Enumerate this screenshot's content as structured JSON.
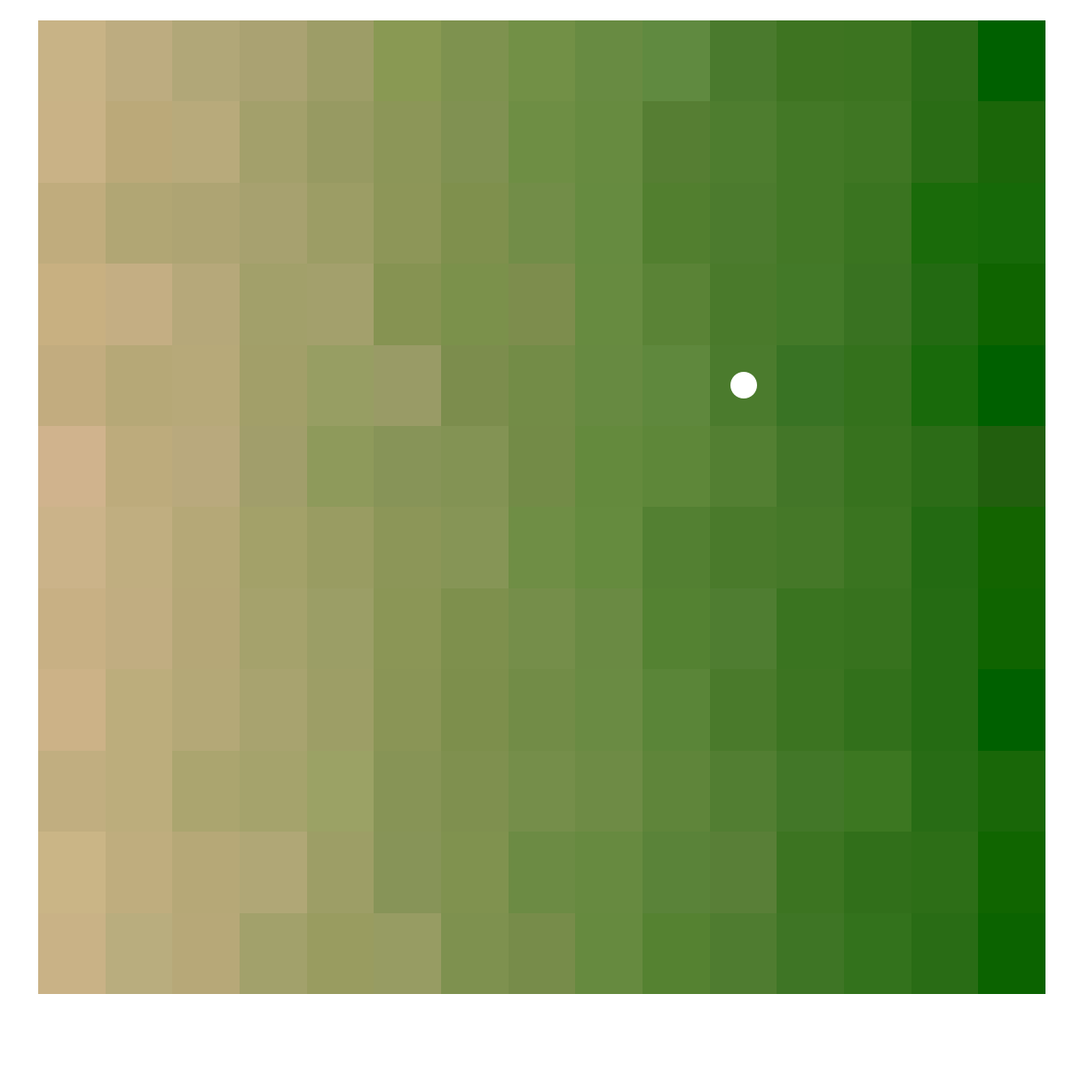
{
  "grid": {
    "rows": 12,
    "cols": 15,
    "cells": [
      [
        "#c8b386",
        "#bdac80",
        "#b1a778",
        "#aaa272",
        "#9d9d67",
        "#899953",
        "#7e924f",
        "#729046",
        "#688b42",
        "#608a40",
        "#4a7a2d",
        "#3e7421",
        "#3c7420",
        "#2d6c18",
        "#006000"
      ],
      [
        "#c9b286",
        "#bba979",
        "#b8aa7b",
        "#a3a06b",
        "#979a62",
        "#8c9658",
        "#809152",
        "#6e8e44",
        "#678b40",
        "#567e33",
        "#4e7d2f",
        "#437826",
        "#3f7623",
        "#2a6c15",
        "#1b6609"
      ],
      [
        "#c0ac7d",
        "#b1a674",
        "#aea473",
        "#a7a16f",
        "#9c9d65",
        "#8d9658",
        "#7f904d",
        "#728d48",
        "#668b40",
        "#527f2f",
        "#4c7b2e",
        "#437826",
        "#3a7420",
        "#1a6b0a",
        "#166908"
      ],
      [
        "#c8b081",
        "#c4ae83",
        "#b6a87a",
        "#a2a06a",
        "#a3a06c",
        "#869352",
        "#7b914b",
        "#7d8d4d",
        "#678b40",
        "#5a8336",
        "#4a7a2b",
        "#437928",
        "#397221",
        "#236a12",
        "#0f6400"
      ],
      [
        "#c2ac7f",
        "#b6a877",
        "#b7a979",
        "#a29f69",
        "#979e63",
        "#999b66",
        "#7c8d4d",
        "#738c47",
        "#678a41",
        "#5f883d",
        "#4b7b2d",
        "#397324",
        "#34711c",
        "#196a0b",
        "#006000"
      ],
      [
        "#d0b38d",
        "#bdab7c",
        "#b9a97d",
        "#a19e6b",
        "#8e9a5b",
        "#879458",
        "#839354",
        "#738b47",
        "#648a3d",
        "#5e8739",
        "#537f32",
        "#437628",
        "#37721e",
        "#2c6c17",
        "#225f0e"
      ],
      [
        "#cbb389",
        "#c0ae80",
        "#b5a877",
        "#a3a169",
        "#999c62",
        "#8c9658",
        "#869556",
        "#6f8e45",
        "#658b3e",
        "#538032",
        "#4a7a2b",
        "#457828",
        "#3a7420",
        "#236a12",
        "#136400"
      ],
      [
        "#c8b084",
        "#c1ad81",
        "#b5a777",
        "#a5a26c",
        "#9b9e66",
        "#8b9656",
        "#7e904d",
        "#758e4a",
        "#6a8a43",
        "#548232",
        "#4f7d31",
        "#3a7420",
        "#37721e",
        "#256b13",
        "#0f6400"
      ],
      [
        "#ccb287",
        "#bcad7c",
        "#b4a877",
        "#a8a36f",
        "#9d9e66",
        "#8a9556",
        "#7d8f4c",
        "#728c47",
        "#6a8b43",
        "#5a8538",
        "#4a7a2b",
        "#3c7421",
        "#32701b",
        "#256b13",
        "#006000"
      ],
      [
        "#c1ae80",
        "#bcad7c",
        "#aba56f",
        "#a5a36c",
        "#9ba265",
        "#879456",
        "#7f904f",
        "#758e4a",
        "#6e8b45",
        "#5f853a",
        "#527e32",
        "#427728",
        "#3c7721",
        "#286c15",
        "#196708"
      ],
      [
        "#cab586",
        "#bfad7e",
        "#b6a877",
        "#b0a776",
        "#9d9e66",
        "#879458",
        "#80924f",
        "#6c8b44",
        "#678a40",
        "#5a8339",
        "#597f37",
        "#3c7421",
        "#316f1a",
        "#2d6e17",
        "#106500"
      ],
      [
        "#c9b286",
        "#b9ad7e",
        "#b7a878",
        "#a2a16b",
        "#999c60",
        "#979c63",
        "#7e914f",
        "#778c4a",
        "#668a3f",
        "#558231",
        "#4f7c30",
        "#3e7525",
        "#33721c",
        "#296c15",
        "#0b6300"
      ]
    ]
  },
  "player": {
    "row": 4,
    "col": 10,
    "color": "#ffffff"
  }
}
